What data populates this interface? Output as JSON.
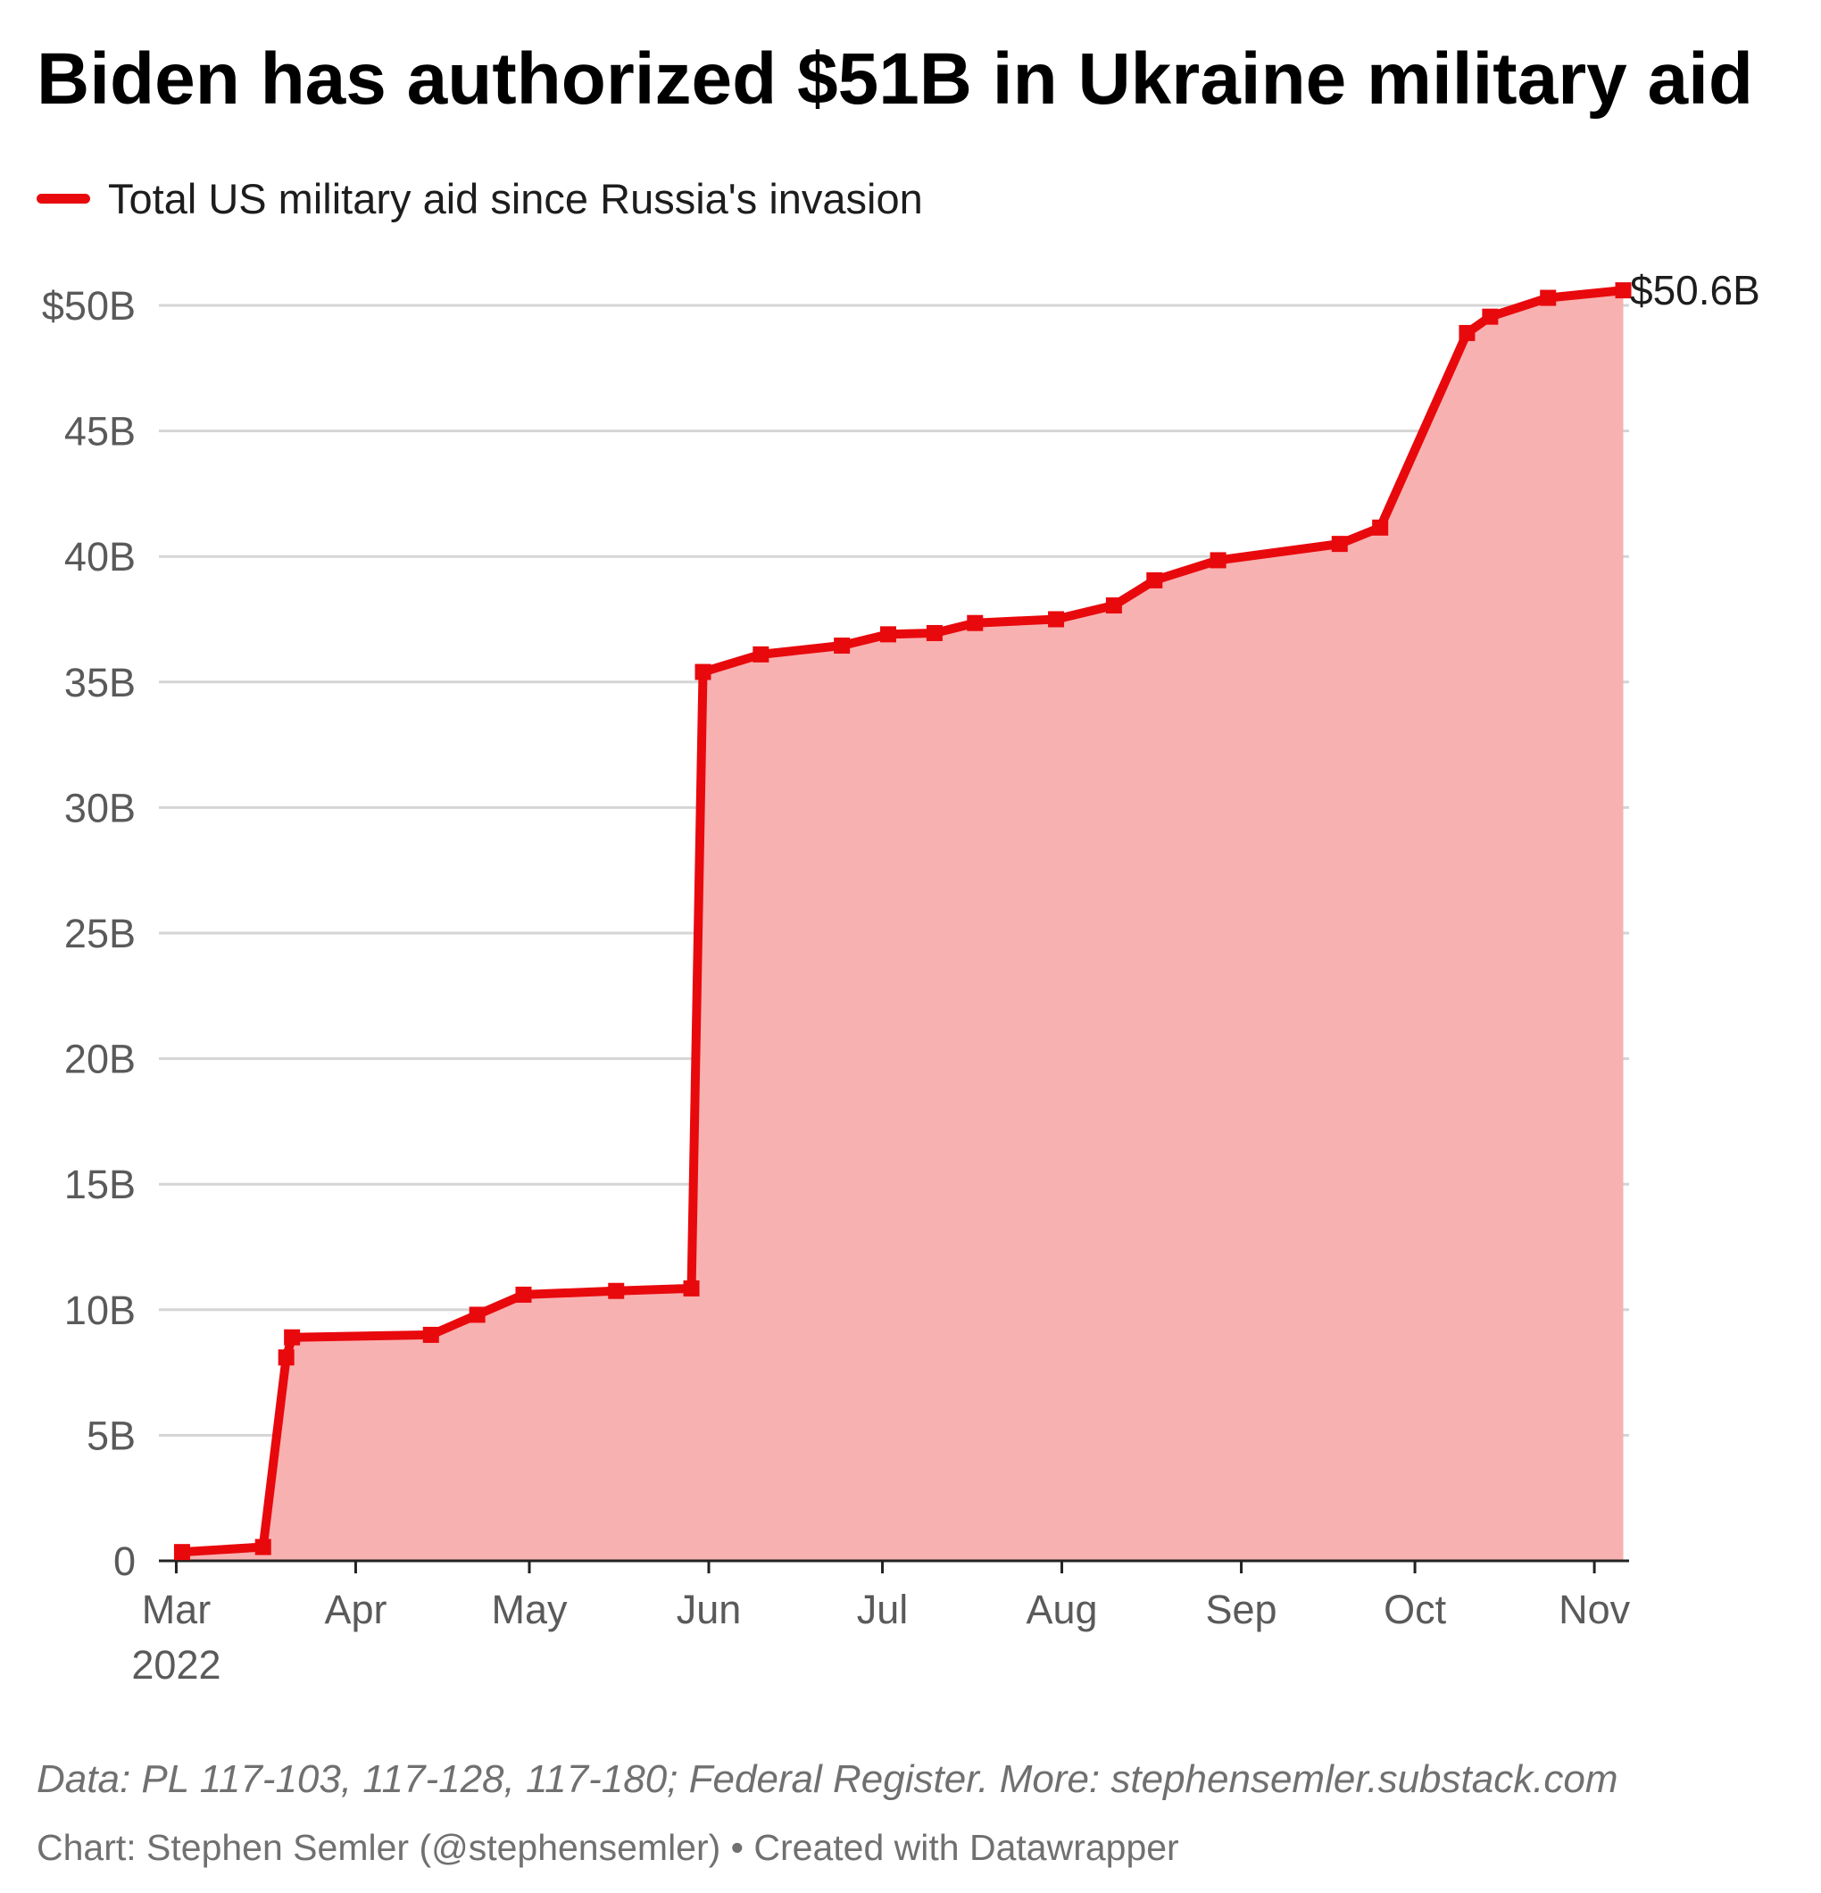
{
  "title": "Biden has authorized $51B in Ukraine military aid",
  "footer": {
    "source": "Data: PL 117-103, 117-128, 117-180; Federal Register. More: stephensemler.substack.com",
    "credit": "Chart: Stephen Semler (@stephensemler) • Created with Datawrapper"
  },
  "colors": {
    "line": "#e8090d",
    "area": "#f8b1b1",
    "grid": "#d5d5d5",
    "axis": "#222222",
    "tick_text": "#5a5a5a"
  },
  "chart_data": {
    "type": "area",
    "series": [
      {
        "name": "Total US military aid since Russia's invasion",
        "end_label": "$50.6B",
        "points": [
          {
            "x": "2022-03-02",
            "y": 0.35
          },
          {
            "x": "2022-03-16",
            "y": 0.55
          },
          {
            "x": "2022-03-20",
            "y": 8.1
          },
          {
            "x": "2022-03-21",
            "y": 8.9
          },
          {
            "x": "2022-04-14",
            "y": 9.0
          },
          {
            "x": "2022-04-22",
            "y": 9.8
          },
          {
            "x": "2022-04-30",
            "y": 10.6
          },
          {
            "x": "2022-05-16",
            "y": 10.75
          },
          {
            "x": "2022-05-29",
            "y": 10.85
          },
          {
            "x": "2022-05-31",
            "y": 35.4
          },
          {
            "x": "2022-06-10",
            "y": 36.1
          },
          {
            "x": "2022-06-24",
            "y": 36.45
          },
          {
            "x": "2022-07-02",
            "y": 36.9
          },
          {
            "x": "2022-07-10",
            "y": 36.95
          },
          {
            "x": "2022-07-17",
            "y": 37.35
          },
          {
            "x": "2022-07-31",
            "y": 37.5
          },
          {
            "x": "2022-08-10",
            "y": 38.05
          },
          {
            "x": "2022-08-17",
            "y": 39.05
          },
          {
            "x": "2022-08-28",
            "y": 39.85
          },
          {
            "x": "2022-09-18",
            "y": 40.5
          },
          {
            "x": "2022-09-25",
            "y": 41.15
          },
          {
            "x": "2022-10-10",
            "y": 48.9
          },
          {
            "x": "2022-10-14",
            "y": 49.55
          },
          {
            "x": "2022-10-24",
            "y": 50.3
          },
          {
            "x": "2022-11-06",
            "y": 50.6
          }
        ]
      }
    ],
    "y_axis": {
      "range": [
        0,
        50
      ],
      "ticks": [
        {
          "value": 0,
          "label": "0"
        },
        {
          "value": 5,
          "label": "5B"
        },
        {
          "value": 10,
          "label": "10B"
        },
        {
          "value": 15,
          "label": "15B"
        },
        {
          "value": 20,
          "label": "20B"
        },
        {
          "value": 25,
          "label": "25B"
        },
        {
          "value": 30,
          "label": "30B"
        },
        {
          "value": 35,
          "label": "35B"
        },
        {
          "value": 40,
          "label": "40B"
        },
        {
          "value": 45,
          "label": "45B"
        },
        {
          "value": 50,
          "label": "$50B"
        }
      ],
      "grid": true
    },
    "x_axis": {
      "range": [
        "2022-02-26",
        "2022-11-07"
      ],
      "ticks": [
        {
          "date": "2022-03-01",
          "label": "Mar",
          "sublabel": "2022"
        },
        {
          "date": "2022-04-01",
          "label": "Apr"
        },
        {
          "date": "2022-05-01",
          "label": "May"
        },
        {
          "date": "2022-06-01",
          "label": "Jun"
        },
        {
          "date": "2022-07-01",
          "label": "Jul"
        },
        {
          "date": "2022-08-01",
          "label": "Aug"
        },
        {
          "date": "2022-09-01",
          "label": "Sep"
        },
        {
          "date": "2022-10-01",
          "label": "Oct"
        },
        {
          "date": "2022-11-01",
          "label": "Nov"
        }
      ]
    },
    "legend": "top-left"
  }
}
